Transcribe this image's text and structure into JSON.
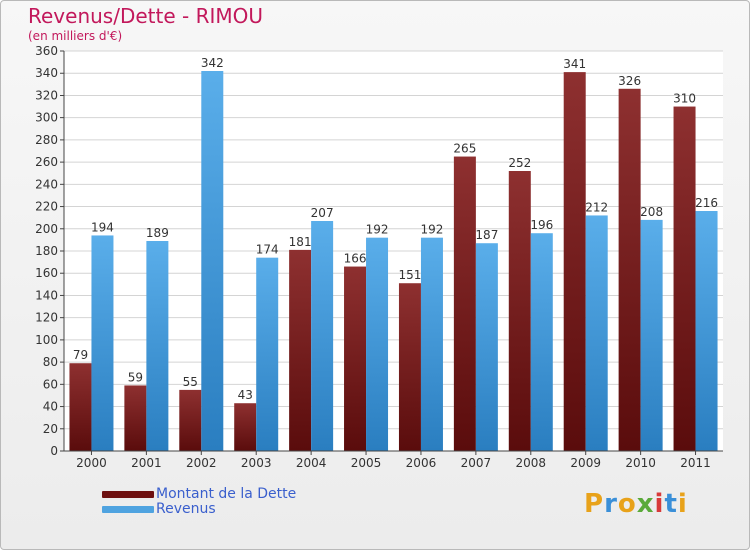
{
  "header": {
    "title": "Revenus/Dette - RIMOU",
    "subtitle": "(en milliers d'€)"
  },
  "legend": {
    "items": [
      {
        "label": "Montant de la Dette",
        "color": "#7a1a1a"
      },
      {
        "label": "Revenus",
        "color": "#4fa3e0"
      }
    ]
  },
  "logo": {
    "text": "Proxiti",
    "colors": [
      "#e8a21a",
      "#3a8fd8",
      "#e8a21a",
      "#5aaa3a",
      "#d83a3a",
      "#3a8fd8",
      "#e8a21a"
    ]
  },
  "chart_data": {
    "type": "bar",
    "categories": [
      "2000",
      "2001",
      "2002",
      "2003",
      "2004",
      "2005",
      "2006",
      "2007",
      "2008",
      "2009",
      "2010",
      "2011"
    ],
    "series": [
      {
        "name": "Montant de la Dette",
        "values": [
          79,
          59,
          55,
          43,
          181,
          166,
          151,
          265,
          252,
          341,
          326,
          310
        ]
      },
      {
        "name": "Revenus",
        "values": [
          194,
          189,
          342,
          174,
          207,
          192,
          192,
          187,
          196,
          212,
          208,
          216
        ]
      }
    ],
    "ylim": [
      0,
      360
    ],
    "yticks": [
      0,
      20,
      40,
      60,
      80,
      100,
      120,
      140,
      160,
      180,
      200,
      220,
      240,
      260,
      280,
      300,
      320,
      340,
      360
    ],
    "grid": true,
    "legend_position": "bottom-left"
  }
}
